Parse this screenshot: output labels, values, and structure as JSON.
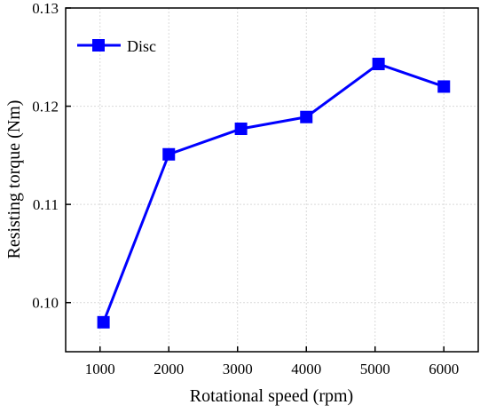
{
  "chart_data": {
    "type": "line",
    "title": "",
    "xlabel": "Rotational speed (rpm)",
    "ylabel": "Resisting torque (Nm)",
    "xlim": [
      500,
      6500
    ],
    "ylim": [
      0.095,
      0.13
    ],
    "xticks": [
      1000,
      2000,
      3000,
      4000,
      5000,
      6000
    ],
    "xtick_labels": [
      "1000",
      "2000",
      "3000",
      "4000",
      "5000",
      "6000"
    ],
    "yticks": [
      0.1,
      0.11,
      0.12,
      0.13
    ],
    "ytick_labels": [
      "0.10",
      "0.11",
      "0.12",
      "0.13"
    ],
    "grid": true,
    "legend_position": "top-left",
    "series": [
      {
        "name": "Disc",
        "color": "#0000ff",
        "marker": "square",
        "x": [
          1050,
          2000,
          3050,
          4000,
          5050,
          6000
        ],
        "y": [
          0.098,
          0.1151,
          0.1177,
          0.1189,
          0.1243,
          0.122
        ]
      }
    ]
  }
}
